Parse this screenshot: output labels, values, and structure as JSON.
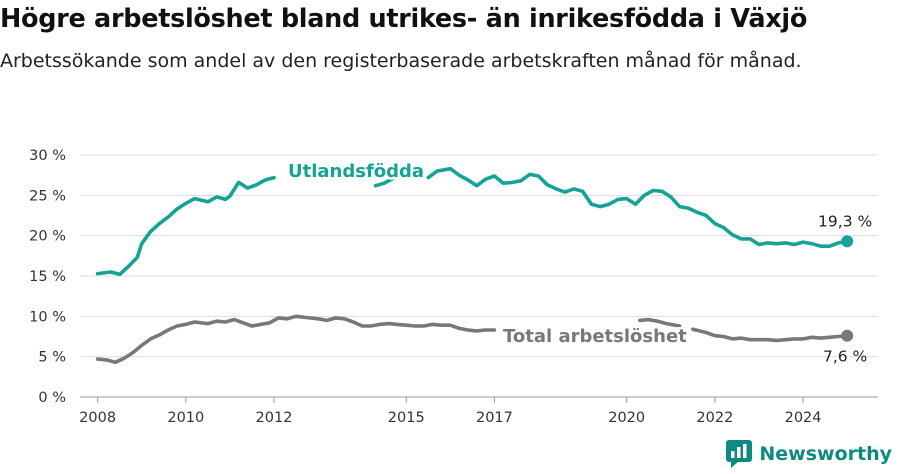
{
  "title": "Högre arbetslöshet bland utrikes- än inrikesfödda i Växjö",
  "subtitle": "Arbetssökande som andel av den registerbaserade arbetskraften månad för månad.",
  "brand": "Newsworthy",
  "colors": {
    "foreign": "#14a394",
    "total": "#77777d",
    "grid": "#dddddd"
  },
  "chart_data": {
    "type": "line",
    "title": "Högre arbetslöshet bland utrikes- än inrikesfödda i Växjö",
    "subtitle": "Arbetssökande som andel av den registerbaserade arbetskraften månad för månad.",
    "ylim": [
      0,
      30
    ],
    "yticks": [
      0,
      5,
      10,
      15,
      20,
      25,
      30
    ],
    "ytick_labels": [
      "0 %",
      "5 %",
      "10 %",
      "15 %",
      "20 %",
      "25 %",
      "30 %"
    ],
    "xlim": [
      2007.6,
      2025.7
    ],
    "xticks": [
      2008,
      2010,
      2012,
      2015,
      2017,
      2020,
      2022,
      2024
    ],
    "xtick_labels": [
      "2008",
      "2010",
      "2012",
      "2015",
      "2017",
      "2020",
      "2022",
      "2024"
    ],
    "grid": true,
    "series": [
      {
        "name": "Utlandsfödda",
        "end_label": "19,3 %",
        "points": [
          [
            2008.0,
            15.3
          ],
          [
            2008.3,
            15.5
          ],
          [
            2008.5,
            15.2
          ],
          [
            2008.7,
            16.2
          ],
          [
            2008.9,
            17.3
          ],
          [
            2009.0,
            19.0
          ],
          [
            2009.2,
            20.5
          ],
          [
            2009.4,
            21.5
          ],
          [
            2009.6,
            22.3
          ],
          [
            2009.8,
            23.3
          ],
          [
            2010.0,
            24.0
          ],
          [
            2010.2,
            24.6
          ],
          [
            2010.5,
            24.2
          ],
          [
            2010.7,
            24.8
          ],
          [
            2010.9,
            24.5
          ],
          [
            2011.0,
            24.9
          ],
          [
            2011.2,
            26.6
          ],
          [
            2011.4,
            25.9
          ],
          [
            2011.6,
            26.3
          ],
          [
            2011.8,
            26.9
          ],
          [
            2012.0,
            27.2
          ],
          null,
          [
            2014.3,
            26.2
          ],
          [
            2014.5,
            26.5
          ],
          [
            2014.7,
            27.1
          ],
          null,
          [
            2015.5,
            27.2
          ],
          [
            2015.7,
            28.0
          ],
          [
            2016.0,
            28.3
          ],
          [
            2016.2,
            27.5
          ],
          [
            2016.4,
            26.9
          ],
          [
            2016.6,
            26.2
          ],
          [
            2016.8,
            27.0
          ],
          [
            2017.0,
            27.4
          ],
          [
            2017.2,
            26.5
          ],
          [
            2017.4,
            26.6
          ],
          [
            2017.6,
            26.8
          ],
          [
            2017.8,
            27.6
          ],
          [
            2018.0,
            27.4
          ],
          [
            2018.2,
            26.3
          ],
          [
            2018.4,
            25.8
          ],
          [
            2018.6,
            25.4
          ],
          [
            2018.8,
            25.8
          ],
          [
            2019.0,
            25.5
          ],
          [
            2019.2,
            23.9
          ],
          [
            2019.4,
            23.6
          ],
          [
            2019.6,
            23.9
          ],
          [
            2019.8,
            24.5
          ],
          [
            2020.0,
            24.6
          ],
          [
            2020.2,
            23.9
          ],
          [
            2020.4,
            25.0
          ],
          [
            2020.6,
            25.6
          ],
          [
            2020.8,
            25.5
          ],
          [
            2021.0,
            24.8
          ],
          [
            2021.2,
            23.6
          ],
          [
            2021.4,
            23.4
          ],
          [
            2021.6,
            22.9
          ],
          [
            2021.8,
            22.5
          ],
          [
            2022.0,
            21.5
          ],
          [
            2022.2,
            21.0
          ],
          [
            2022.4,
            20.1
          ],
          [
            2022.6,
            19.6
          ],
          [
            2022.8,
            19.6
          ],
          [
            2023.0,
            18.9
          ],
          [
            2023.2,
            19.1
          ],
          [
            2023.4,
            19.0
          ],
          [
            2023.6,
            19.1
          ],
          [
            2023.8,
            18.9
          ],
          [
            2024.0,
            19.2
          ],
          [
            2024.2,
            19.0
          ],
          [
            2024.4,
            18.7
          ],
          [
            2024.6,
            18.7
          ],
          [
            2024.8,
            19.1
          ],
          [
            2025.0,
            19.3
          ]
        ]
      },
      {
        "name": "Total arbetslöshet",
        "end_label": "7,6 %",
        "points": [
          [
            2008.0,
            4.7
          ],
          [
            2008.2,
            4.6
          ],
          [
            2008.4,
            4.3
          ],
          [
            2008.6,
            4.8
          ],
          [
            2008.8,
            5.5
          ],
          [
            2009.0,
            6.4
          ],
          [
            2009.2,
            7.2
          ],
          [
            2009.4,
            7.7
          ],
          [
            2009.6,
            8.3
          ],
          [
            2009.8,
            8.8
          ],
          [
            2010.0,
            9.0
          ],
          [
            2010.2,
            9.3
          ],
          [
            2010.5,
            9.1
          ],
          [
            2010.7,
            9.4
          ],
          [
            2010.9,
            9.3
          ],
          [
            2011.1,
            9.6
          ],
          [
            2011.3,
            9.2
          ],
          [
            2011.5,
            8.8
          ],
          [
            2011.7,
            9.0
          ],
          [
            2011.9,
            9.2
          ],
          [
            2012.1,
            9.8
          ],
          [
            2012.3,
            9.7
          ],
          [
            2012.5,
            10.0
          ],
          [
            2012.8,
            9.8
          ],
          [
            2013.0,
            9.7
          ],
          [
            2013.2,
            9.5
          ],
          [
            2013.4,
            9.8
          ],
          [
            2013.6,
            9.7
          ],
          [
            2013.8,
            9.3
          ],
          [
            2014.0,
            8.8
          ],
          [
            2014.2,
            8.8
          ],
          [
            2014.4,
            9.0
          ],
          [
            2014.6,
            9.1
          ],
          [
            2014.8,
            9.0
          ],
          [
            2015.0,
            8.9
          ],
          [
            2015.2,
            8.8
          ],
          [
            2015.4,
            8.8
          ],
          [
            2015.6,
            9.0
          ],
          [
            2015.8,
            8.9
          ],
          [
            2016.0,
            8.9
          ],
          [
            2016.2,
            8.5
          ],
          [
            2016.4,
            8.3
          ],
          [
            2016.6,
            8.2
          ],
          [
            2016.8,
            8.3
          ],
          [
            2017.0,
            8.3
          ],
          null,
          [
            2020.3,
            9.5
          ],
          [
            2020.5,
            9.6
          ],
          [
            2020.7,
            9.4
          ],
          [
            2020.9,
            9.1
          ],
          [
            2021.2,
            8.8
          ],
          null,
          [
            2021.5,
            8.4
          ],
          [
            2021.8,
            8.0
          ],
          [
            2022.0,
            7.6
          ],
          [
            2022.2,
            7.5
          ],
          [
            2022.4,
            7.2
          ],
          [
            2022.6,
            7.3
          ],
          [
            2022.8,
            7.1
          ],
          [
            2023.0,
            7.1
          ],
          [
            2023.2,
            7.1
          ],
          [
            2023.4,
            7.0
          ],
          [
            2023.6,
            7.1
          ],
          [
            2023.8,
            7.2
          ],
          [
            2024.0,
            7.2
          ],
          [
            2024.2,
            7.4
          ],
          [
            2024.4,
            7.3
          ],
          [
            2024.6,
            7.4
          ],
          [
            2024.8,
            7.5
          ],
          [
            2025.0,
            7.6
          ]
        ]
      }
    ]
  }
}
